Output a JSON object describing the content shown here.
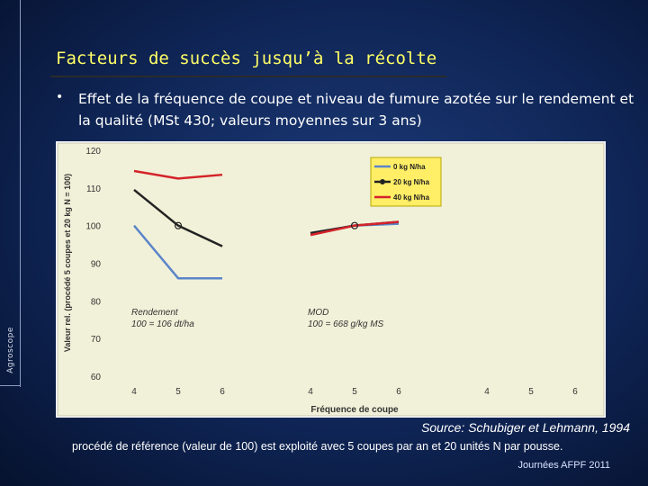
{
  "slide": {
    "title": "Facteurs de succès jusqu’à la récolte",
    "bullet": "•",
    "subtitle": "Effet de la fréquence de coupe et niveau de fumure azotée sur le rendement et la qualité (MSt 430; valeurs moyennes sur 3 ans)",
    "brand": "Agroscope",
    "source": "Source: Schubiger et Lehmann, 1994",
    "footnote": "procédé de référence (valeur de 100) est exploité avec 5 coupes par an et 20 unités N par pousse.",
    "event": "Journées AFPF 2011"
  },
  "colors": {
    "plot_background": "#f1f1d9",
    "legend_background": "#ffee66",
    "series_0": "#5b85c9",
    "series_20": "#222222",
    "series_40": "#d4232a",
    "title": "#ffff66"
  },
  "chart_data": {
    "type": "line",
    "ylabel": "Valeur rel. (procédé 5 coupes et 20 kg N = 100)",
    "xlabel": "Fréquence de coupe",
    "ylim": [
      60,
      120
    ],
    "yticks": [
      60,
      70,
      80,
      90,
      100,
      110,
      120
    ],
    "groups": [
      {
        "name": "Rendement",
        "note": "100 = 106 dt/ha",
        "x": [
          4,
          5,
          6
        ]
      },
      {
        "name": "MOD",
        "note": "100 = 668 g/kg MS",
        "x": [
          4,
          5,
          6
        ]
      },
      {
        "name": "",
        "note": "",
        "x": [
          4,
          5,
          6
        ]
      }
    ],
    "series": [
      {
        "name": "0 kg N/ha",
        "values": [
          [
            100,
            86,
            86
          ],
          [
            98,
            100,
            100.5
          ],
          [
            null,
            null,
            null
          ]
        ]
      },
      {
        "name": "20 kg N/ha",
        "values": [
          [
            109.5,
            100,
            94.5
          ],
          [
            98,
            100,
            101
          ],
          [
            null,
            null,
            null
          ]
        ]
      },
      {
        "name": "40 kg N/ha",
        "values": [
          [
            114.5,
            112.5,
            113.5
          ],
          [
            97.5,
            100,
            101
          ],
          [
            null,
            null,
            null
          ]
        ]
      }
    ],
    "markers": [
      {
        "group": 0,
        "x": 5,
        "y": 100
      },
      {
        "group": 1,
        "x": 5,
        "y": 100
      }
    ],
    "legend": "top-right",
    "grid": false
  }
}
